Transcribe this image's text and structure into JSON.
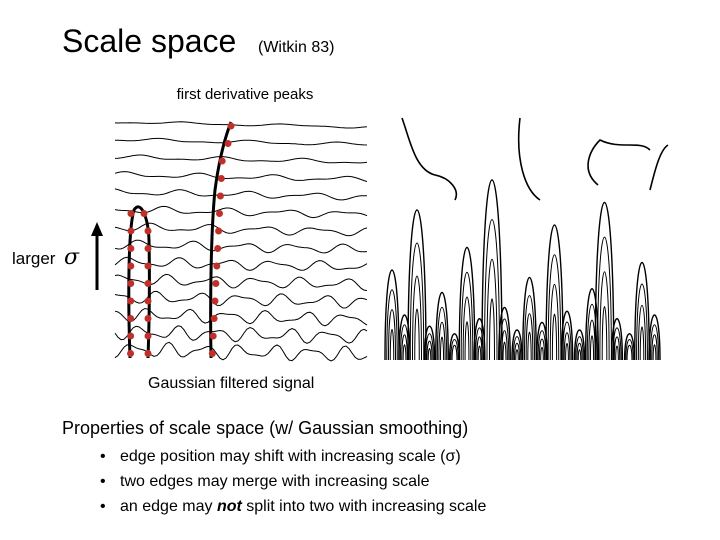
{
  "title": {
    "main": "Scale space",
    "citation": "(Witkin 83)"
  },
  "figure": {
    "top_label": "first derivative peaks",
    "axis_label": "larger",
    "axis_symbol": "σ",
    "caption": "Gaussian filtered signal"
  },
  "properties": {
    "heading": "Properties of scale space (w/ Gaussian smoothing)",
    "bullets": [
      {
        "text": "edge position may shift with increasing scale (σ)"
      },
      {
        "text": "two edges may merge with increasing scale"
      },
      {
        "before": "an edge may ",
        "emphasis": "not",
        "after": " split into two with increasing scale"
      }
    ]
  }
}
